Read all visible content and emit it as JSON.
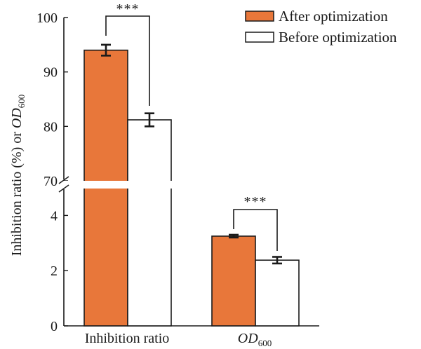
{
  "chart_data": {
    "type": "bar",
    "categories": [
      "Inhibition ratio",
      "OD600"
    ],
    "category_labels": [
      {
        "text": "Inhibition ratio"
      },
      {
        "text": "OD",
        "sub": "600",
        "italic": true
      }
    ],
    "series": [
      {
        "name": "After optimization",
        "values": [
          94.0,
          3.25
        ],
        "errors": [
          1.0,
          0.05
        ],
        "color": "#E8773A"
      },
      {
        "name": "Before optimization",
        "values": [
          81.2,
          2.38
        ],
        "errors": [
          1.2,
          0.12
        ],
        "color": "#ffffff"
      }
    ],
    "ylabel": {
      "main": "Inhibition ratio (%) or ",
      "italic": "OD",
      "sub": "600"
    },
    "y_upper": {
      "range": [
        70,
        100
      ],
      "ticks": [
        "70",
        "80",
        "90",
        "100"
      ]
    },
    "y_lower": {
      "range": [
        0,
        5
      ],
      "ticks": [
        "0",
        "2",
        "4"
      ]
    },
    "axis_break": true,
    "significance": [
      "***",
      "***"
    ],
    "legend": "top-right",
    "grid": false
  }
}
